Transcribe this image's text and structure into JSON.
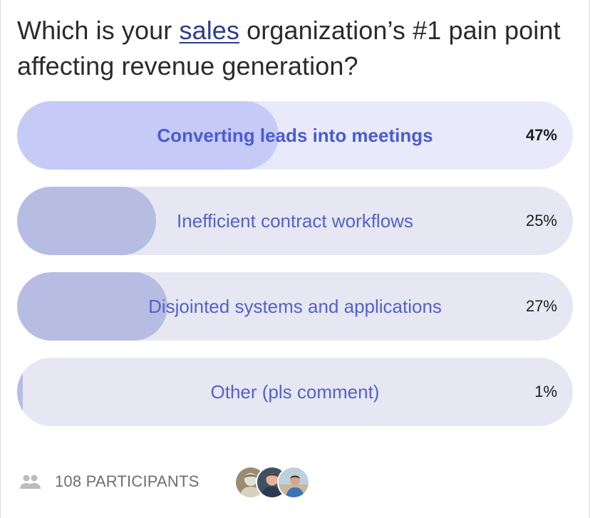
{
  "poll": {
    "question_before": "Which is your ",
    "question_link": "sales",
    "question_after": " organization’s #1 pain point affecting revenue generation?",
    "options": [
      {
        "label": "Converting leads into meetings",
        "percent": "47%",
        "fill_percent": 47,
        "selected": true
      },
      {
        "label": "Inefficient contract workflows",
        "percent": "25%",
        "fill_percent": 25,
        "selected": false
      },
      {
        "label": "Disjointed systems and applications",
        "percent": "27%",
        "fill_percent": 27,
        "selected": false
      },
      {
        "label": "Other (pls comment)",
        "percent": "1%",
        "fill_percent": 1,
        "selected": false
      }
    ]
  },
  "footer": {
    "participants_label": "108 PARTICIPANTS",
    "people_icon": "people-icon",
    "avatars": [
      "avatar-1",
      "avatar-2",
      "avatar-3"
    ]
  },
  "colors": {
    "accent": "#4a5bd3",
    "link": "#2f3c8f",
    "track": "#e6e7f3",
    "fill": "#b7bde2",
    "selected_fill": "#c5cbf6"
  }
}
